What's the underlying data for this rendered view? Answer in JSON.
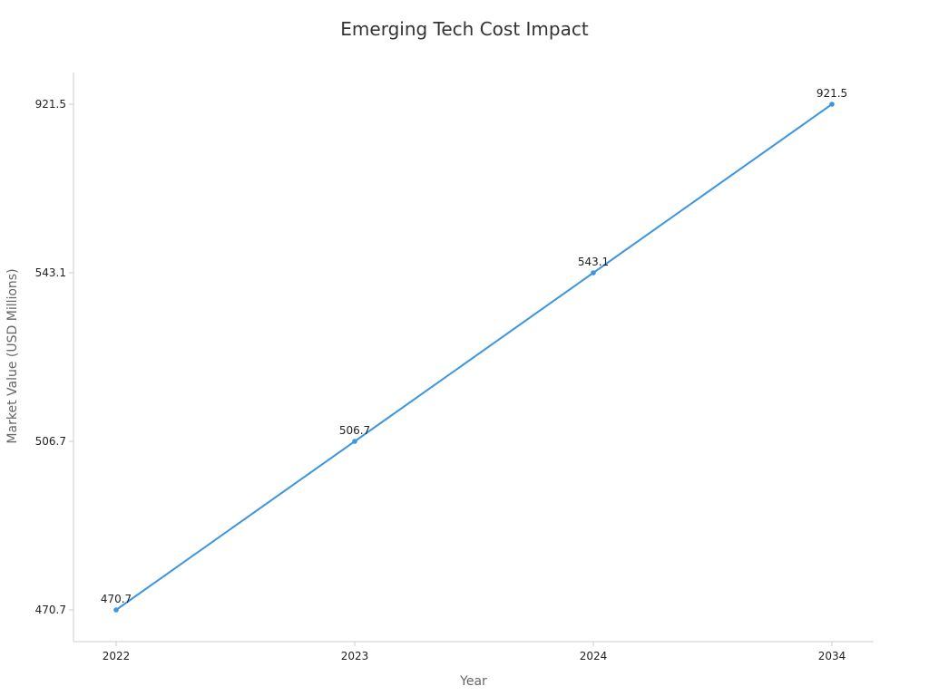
{
  "chart_data": {
    "type": "line",
    "title": "Emerging Tech Cost Impact",
    "xlabel": "Year",
    "ylabel": "Market Value (USD Millions)",
    "categories": [
      "2022",
      "2023",
      "2024",
      "2034"
    ],
    "y_ticks": [
      "470.7",
      "506.7",
      "543.1",
      "921.5"
    ],
    "series": [
      {
        "values": [
          470.7,
          506.7,
          543.1,
          921.5
        ],
        "labels": [
          "470.7",
          "506.7",
          "543.1",
          "921.5"
        ]
      }
    ],
    "y_scale": "categorical (evenly spaced at data values)",
    "grid": false,
    "legend": "none",
    "colors": {
      "line": "#3b95e0",
      "axis": "#cccccc",
      "text": "#222222",
      "title": "#333333"
    }
  }
}
